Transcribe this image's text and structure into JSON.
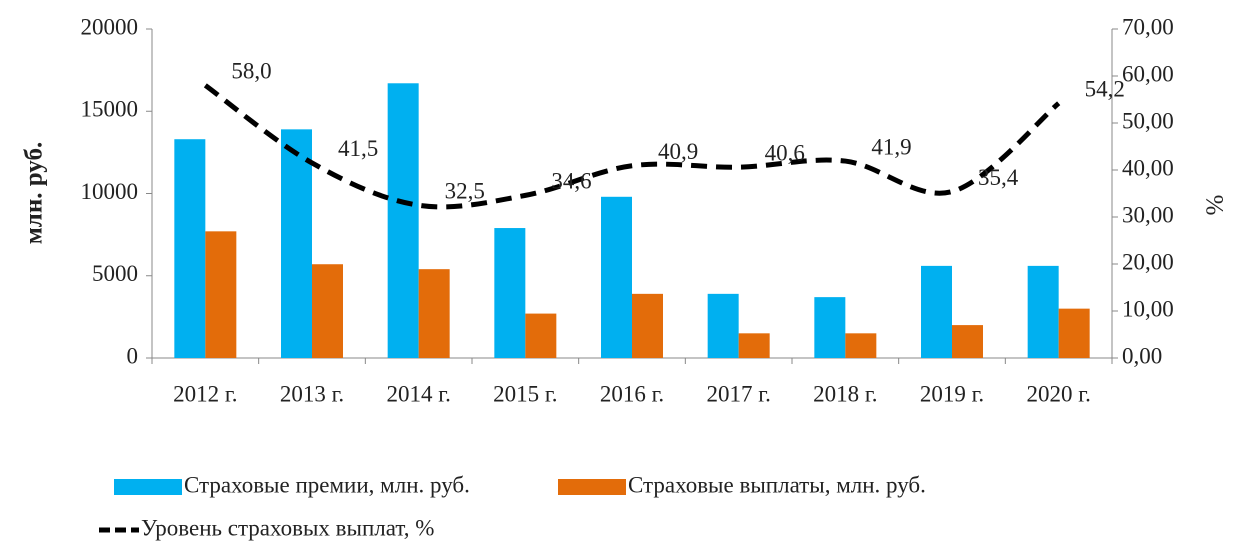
{
  "chart_data": {
    "type": "bar-line",
    "categories": [
      "2012 г.",
      "2013 г.",
      "2014 г.",
      "2015 г.",
      "2016 г.",
      "2017 г.",
      "2018 г.",
      "2019 г.",
      "2020 г."
    ],
    "series": [
      {
        "name": "Страховые премии, млн. руб.",
        "color": "#00b0f0",
        "values": [
          13300,
          13900,
          16700,
          7900,
          9800,
          3900,
          3700,
          5600,
          5600
        ]
      },
      {
        "name": "Страховые выплаты, млн. руб.",
        "color": "#e36c0a",
        "values": [
          7700,
          5700,
          5400,
          2700,
          3900,
          1500,
          1500,
          2000,
          3000
        ]
      },
      {
        "name": "Уровень страховых выплат, %",
        "color": "#000000",
        "axis": "y2",
        "values": [
          58.0,
          41.5,
          32.5,
          34.6,
          40.9,
          40.6,
          41.9,
          35.4,
          54.2
        ],
        "value_labels": [
          "58,0",
          "41,5",
          "32,5",
          "34,6",
          "40,9",
          "40,6",
          "41,9",
          "35,4",
          "54,2"
        ]
      }
    ],
    "ylabel": "млн. руб.",
    "y2label": "%",
    "ylim": [
      0,
      20000
    ],
    "yticks": [
      0,
      5000,
      10000,
      15000,
      20000
    ],
    "y2lim": [
      0,
      70
    ],
    "y2ticks": [
      {
        "value": 0,
        "label": "0,00"
      },
      {
        "value": 10,
        "label": "10,00"
      },
      {
        "value": 20,
        "label": "20,00"
      },
      {
        "value": 30,
        "label": "30,00"
      },
      {
        "value": 40,
        "label": "40,00"
      },
      {
        "value": 50,
        "label": "50,00"
      },
      {
        "value": 60,
        "label": "60,00"
      },
      {
        "value": 70,
        "label": "70,00"
      }
    ]
  }
}
